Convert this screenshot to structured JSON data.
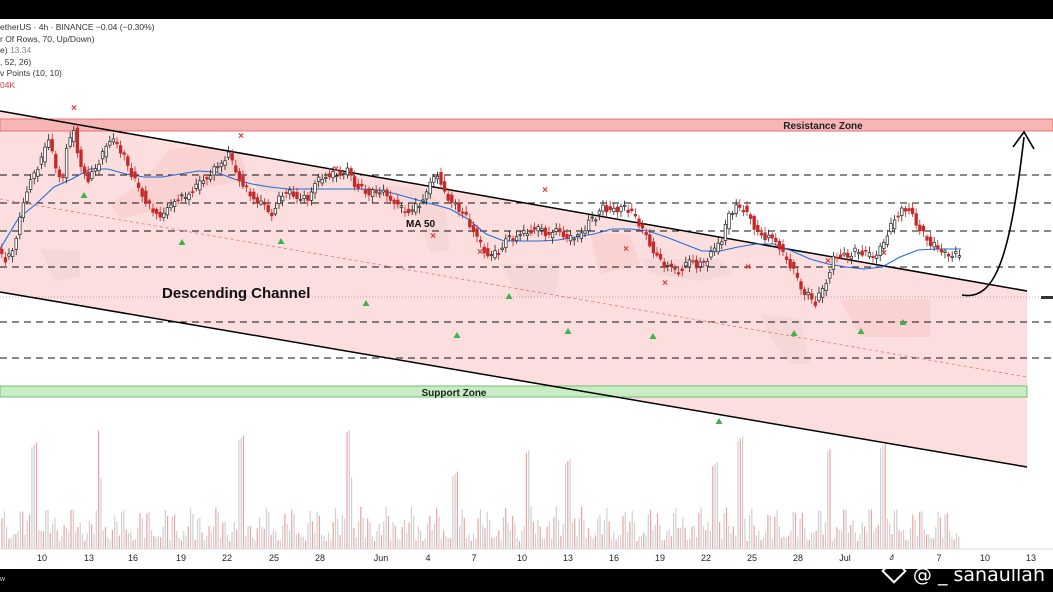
{
  "header": {
    "symbol_line": "etherUS · 4h · BINANCE  −0.04 (−0.30%)",
    "vp_line": "r Of Rows, 70, Up/Down)",
    "vol_line_label": "e)",
    "vol_line_value": "13.34",
    "macd_line": ", 52, 26)",
    "pivot_line": "v Points (10, 10)",
    "vol_value": "04K"
  },
  "chart_data": {
    "type": "candlestick",
    "title": "",
    "xlabel": "",
    "ylabel": "",
    "x_ticks": [
      "10",
      "13",
      "16",
      "19",
      "22",
      "25",
      "28",
      "Jun",
      "4",
      "7",
      "10",
      "13",
      "16",
      "19",
      "22",
      "25",
      "28",
      "Jul",
      "4",
      "7",
      "10",
      "13"
    ],
    "annotations": {
      "channel_label": "Descending Channel",
      "ma_label": "MA 50",
      "resistance_label": "Resistance Zone",
      "support_label": "Support Zone"
    },
    "price_path": [
      [
        0,
        232
      ],
      [
        2,
        240
      ],
      [
        4,
        233
      ],
      [
        6,
        200
      ],
      [
        8,
        170
      ],
      [
        10,
        155
      ],
      [
        12,
        140
      ],
      [
        14,
        118
      ],
      [
        16,
        150
      ],
      [
        18,
        160
      ],
      [
        19,
        130
      ],
      [
        21,
        112
      ],
      [
        23,
        150
      ],
      [
        25,
        160
      ],
      [
        27,
        150
      ],
      [
        29,
        135
      ],
      [
        31,
        120
      ],
      [
        33,
        125
      ],
      [
        35,
        138
      ],
      [
        37,
        155
      ],
      [
        40,
        175
      ],
      [
        43,
        193
      ],
      [
        46,
        197
      ],
      [
        49,
        180
      ],
      [
        52,
        178
      ],
      [
        55,
        168
      ],
      [
        58,
        158
      ],
      [
        61,
        147
      ],
      [
        64,
        136
      ],
      [
        67,
        160
      ],
      [
        70,
        176
      ],
      [
        73,
        185
      ],
      [
        76,
        195
      ],
      [
        78,
        180
      ],
      [
        80,
        172
      ],
      [
        83,
        178
      ],
      [
        86,
        180
      ],
      [
        88,
        163
      ],
      [
        91,
        157
      ],
      [
        94,
        155
      ],
      [
        97,
        152
      ],
      [
        99,
        166
      ],
      [
        101,
        170
      ],
      [
        103,
        175
      ],
      [
        105,
        172
      ],
      [
        108,
        175
      ],
      [
        111,
        188
      ],
      [
        114,
        193
      ],
      [
        117,
        185
      ],
      [
        120,
        166
      ],
      [
        122,
        155
      ],
      [
        124,
        175
      ],
      [
        126,
        183
      ],
      [
        128,
        190
      ],
      [
        130,
        198
      ],
      [
        133,
        220
      ],
      [
        136,
        237
      ],
      [
        139,
        233
      ],
      [
        141,
        220
      ],
      [
        144,
        218
      ],
      [
        147,
        212
      ],
      [
        150,
        210
      ],
      [
        153,
        216
      ],
      [
        156,
        210
      ],
      [
        158,
        220
      ],
      [
        160,
        217
      ],
      [
        162,
        216
      ],
      [
        164,
        202
      ],
      [
        166,
        198
      ],
      [
        168,
        188
      ],
      [
        170,
        192
      ],
      [
        172,
        190
      ],
      [
        174,
        188
      ],
      [
        176,
        193
      ],
      [
        178,
        204
      ],
      [
        181,
        224
      ],
      [
        183,
        238
      ],
      [
        186,
        248
      ],
      [
        189,
        252
      ],
      [
        192,
        242
      ],
      [
        194,
        246
      ],
      [
        196,
        244
      ],
      [
        199,
        230
      ],
      [
        201,
        220
      ],
      [
        203,
        195
      ],
      [
        205,
        188
      ],
      [
        207,
        190
      ],
      [
        209,
        200
      ],
      [
        211,
        215
      ],
      [
        213,
        218
      ],
      [
        216,
        220
      ],
      [
        218,
        235
      ],
      [
        221,
        252
      ],
      [
        223,
        270
      ],
      [
        225,
        276
      ],
      [
        227,
        284
      ],
      [
        230,
        262
      ],
      [
        232,
        240
      ],
      [
        234,
        236
      ],
      [
        236,
        238
      ],
      [
        238,
        232
      ],
      [
        241,
        235
      ],
      [
        243,
        238
      ],
      [
        245,
        230
      ],
      [
        247,
        215
      ],
      [
        249,
        200
      ],
      [
        251,
        192
      ],
      [
        253,
        190
      ],
      [
        255,
        205
      ],
      [
        257,
        215
      ],
      [
        259,
        225
      ],
      [
        261,
        228
      ],
      [
        263,
        235
      ],
      [
        265,
        236
      ],
      [
        267,
        235
      ]
    ],
    "ma50_path": [
      [
        0,
        230
      ],
      [
        5,
        200
      ],
      [
        10,
        185
      ],
      [
        15,
        168
      ],
      [
        20,
        160
      ],
      [
        25,
        150
      ],
      [
        30,
        150
      ],
      [
        35,
        155
      ],
      [
        40,
        158
      ],
      [
        45,
        158
      ],
      [
        50,
        155
      ],
      [
        55,
        152
      ],
      [
        60,
        153
      ],
      [
        65,
        160
      ],
      [
        70,
        165
      ],
      [
        75,
        168
      ],
      [
        80,
        170
      ],
      [
        85,
        170
      ],
      [
        90,
        170
      ],
      [
        95,
        170
      ],
      [
        100,
        170
      ],
      [
        105,
        171
      ],
      [
        110,
        175
      ],
      [
        115,
        180
      ],
      [
        120,
        185
      ],
      [
        125,
        190
      ],
      [
        130,
        200
      ],
      [
        135,
        215
      ],
      [
        140,
        222
      ],
      [
        145,
        222
      ],
      [
        150,
        222
      ],
      [
        155,
        221
      ],
      [
        160,
        218
      ],
      [
        165,
        215
      ],
      [
        170,
        210
      ],
      [
        175,
        210
      ],
      [
        180,
        212
      ],
      [
        185,
        218
      ],
      [
        190,
        225
      ],
      [
        195,
        232
      ],
      [
        200,
        232
      ],
      [
        205,
        228
      ],
      [
        210,
        225
      ],
      [
        215,
        225
      ],
      [
        220,
        232
      ],
      [
        225,
        240
      ],
      [
        230,
        245
      ],
      [
        235,
        248
      ],
      [
        240,
        250
      ],
      [
        245,
        248
      ],
      [
        250,
        238
      ],
      [
        255,
        231
      ],
      [
        260,
        230
      ],
      [
        265,
        230
      ],
      [
        267,
        230
      ]
    ],
    "resistance_zone": [
      100,
      112
    ],
    "support_zone": [
      367,
      378
    ],
    "channel_upper": [
      [
        0,
        92
      ],
      [
        1027,
        272
      ]
    ],
    "channel_lower": [
      [
        0,
        273
      ],
      [
        1027,
        448
      ]
    ],
    "midline": [
      [
        0,
        180
      ],
      [
        1027,
        358
      ]
    ],
    "horizontal_levels": [
      156,
      184,
      212,
      248,
      303,
      339
    ],
    "current_price_line": 278
  },
  "footer": {
    "watermark": "@ _ sanaullah",
    "corner": "w"
  }
}
